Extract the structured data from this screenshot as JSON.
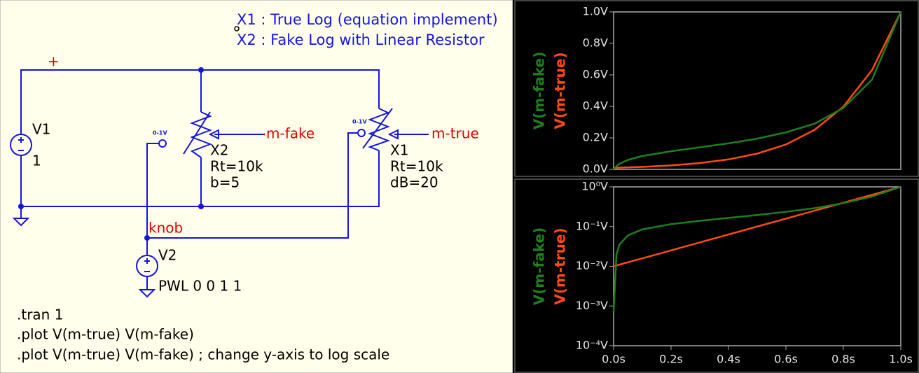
{
  "schematic": {
    "comments": [
      "X1 : True Log (equation implement)",
      "X2 : Fake Log with Linear Resistor"
    ],
    "net_labels": [
      "+",
      "m-fake",
      "m-true",
      "knob"
    ],
    "components": [
      {
        "name": "V1",
        "value": "1"
      },
      {
        "name": "X2",
        "tag": "0-1V",
        "params": [
          "Rt=10k",
          "b=5"
        ]
      },
      {
        "name": "X1",
        "tag": "0-1V",
        "params": [
          "Rt=10k",
          "dB=20"
        ]
      },
      {
        "name": "V2",
        "value": "PWL 0 0 1 1"
      }
    ],
    "directives": [
      ".tran 1",
      ".plot V(m-true) V(m-fake)",
      ".plot V(m-true) V(m-fake) ; change y-axis to log scale"
    ]
  },
  "chart_data": [
    {
      "type": "line",
      "x": [
        0,
        0.01,
        0.02,
        0.05,
        0.1,
        0.2,
        0.3,
        0.4,
        0.5,
        0.6,
        0.7,
        0.8,
        0.9,
        1.0
      ],
      "series": [
        {
          "name": "V(m-fake)",
          "color": "#1f7f1f",
          "values": [
            0,
            0.02,
            0.035,
            0.06,
            0.085,
            0.115,
            0.14,
            0.165,
            0.195,
            0.235,
            0.29,
            0.39,
            0.57,
            1.0
          ]
        },
        {
          "name": "V(m-true)",
          "color": "#ff4a12",
          "values": [
            0.01,
            0.0105,
            0.011,
            0.0126,
            0.0158,
            0.0251,
            0.0398,
            0.0631,
            0.1,
            0.158,
            0.251,
            0.398,
            0.631,
            1.0
          ]
        }
      ],
      "xlim": [
        0,
        1
      ],
      "ylim": [
        0,
        1
      ],
      "yticks": [
        {
          "value": 0,
          "label": "0.0V"
        },
        {
          "value": 0.2,
          "label": "0.2V"
        },
        {
          "value": 0.4,
          "label": "0.4V"
        },
        {
          "value": 0.6,
          "label": "0.6V"
        },
        {
          "value": 0.8,
          "label": "0.8V"
        },
        {
          "value": 1,
          "label": "1.0V"
        }
      ]
    },
    {
      "type": "line",
      "log_y": true,
      "x": [
        0,
        0.01,
        0.02,
        0.05,
        0.1,
        0.2,
        0.3,
        0.4,
        0.5,
        0.6,
        0.7,
        0.8,
        0.9,
        1.0
      ],
      "series": [
        {
          "name": "V(m-fake)",
          "color": "#1f7f1f",
          "values": [
            0.0007,
            0.02,
            0.035,
            0.06,
            0.085,
            0.115,
            0.14,
            0.165,
            0.195,
            0.235,
            0.29,
            0.39,
            0.57,
            1.0
          ]
        },
        {
          "name": "V(m-true)",
          "color": "#ff4a12",
          "values": [
            0.01,
            0.0105,
            0.011,
            0.0126,
            0.0158,
            0.0251,
            0.0398,
            0.0631,
            0.1,
            0.158,
            0.251,
            0.398,
            0.631,
            1.0
          ]
        }
      ],
      "xlim": [
        0,
        1
      ],
      "ylim": [
        0.0001,
        1
      ],
      "xticks": [
        {
          "value": 0,
          "label": "0.0s"
        },
        {
          "value": 0.2,
          "label": "0.2s"
        },
        {
          "value": 0.4,
          "label": "0.4s"
        },
        {
          "value": 0.6,
          "label": "0.6s"
        },
        {
          "value": 0.8,
          "label": "0.8s"
        },
        {
          "value": 1,
          "label": "1.0s"
        }
      ],
      "yticks": [
        {
          "value": 0.0001,
          "label": "10⁻⁴V"
        },
        {
          "value": 0.001,
          "label": "10⁻³V"
        },
        {
          "value": 0.01,
          "label": "10⁻²V"
        },
        {
          "value": 0.1,
          "label": "10⁻¹V"
        },
        {
          "value": 1,
          "label": "10⁰V"
        }
      ]
    }
  ]
}
